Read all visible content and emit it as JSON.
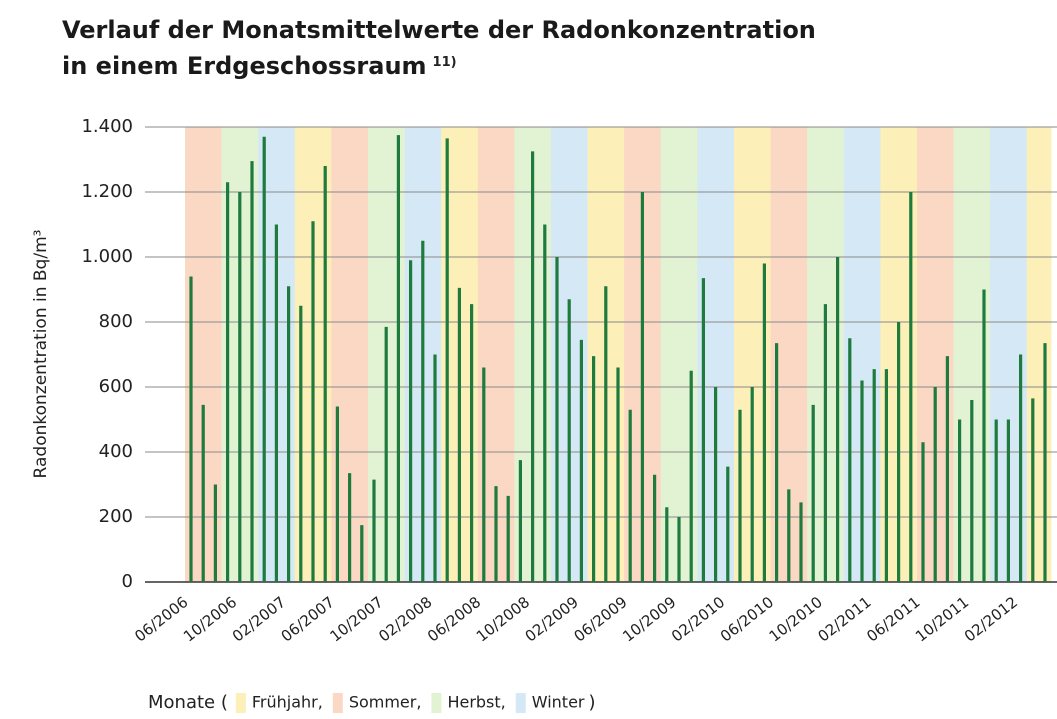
{
  "chart_data": {
    "type": "bar",
    "title": "Verlauf der Monatsmittelwerte der Radonkonzentration",
    "subtitle": "in einem Erdgeschossraum",
    "footnote": "11)",
    "y_label": "Radonkonzentration in Bq/m³",
    "categories": [
      "06/2006",
      null,
      null,
      null,
      "10/2006",
      null,
      null,
      null,
      "02/2007",
      null,
      null,
      null,
      "06/2007",
      null,
      null,
      null,
      "10/2007",
      null,
      null,
      null,
      "02/2008",
      null,
      null,
      null,
      "06/2008",
      null,
      null,
      null,
      "10/2008",
      null,
      null,
      null,
      "02/2009",
      null,
      null,
      null,
      "06/2009",
      null,
      null,
      null,
      "10/2009",
      null,
      null,
      null,
      "02/2010",
      null,
      null,
      null,
      "06/2010",
      null,
      null,
      null,
      "10/2010",
      null,
      null,
      null,
      "02/2011",
      null,
      null,
      null,
      "06/2011",
      null,
      null,
      null,
      "10/2011",
      null,
      null,
      null,
      "02/2012",
      null,
      null
    ],
    "values": [
      940,
      545,
      300,
      1230,
      1200,
      1295,
      1370,
      1100,
      910,
      850,
      1110,
      1280,
      540,
      335,
      175,
      315,
      785,
      1375,
      990,
      1050,
      700,
      1365,
      905,
      855,
      660,
      295,
      265,
      375,
      1325,
      1100,
      1000,
      870,
      745,
      695,
      910,
      660,
      530,
      1200,
      330,
      230,
      200,
      650,
      935,
      600,
      355,
      530,
      600,
      980,
      735,
      285,
      245,
      545,
      855,
      1000,
      750,
      620,
      655,
      655,
      800,
      1200,
      430,
      600,
      695,
      500,
      560,
      900,
      500,
      500,
      700,
      565,
      735
    ],
    "color": "#1f7a3e",
    "ylim": [
      0,
      1400
    ],
    "yticks": [
      0,
      200,
      400,
      600,
      800,
      {
        "value": 1000,
        "label": "1.000"
      },
      {
        "value": 1200,
        "label": "1.200"
      },
      {
        "value": 1400,
        "label": "1.400"
      }
    ],
    "grid": true,
    "legend": {
      "prefix": "Monate (",
      "suffix": ")",
      "items": [
        {
          "name": "Frühjahr,",
          "color": "#fcefb8"
        },
        {
          "name": "Sommer,",
          "color": "#fbd8c4"
        },
        {
          "name": "Herbst,",
          "color": "#e2f3d4"
        },
        {
          "name": "Winter",
          "color": "#d5e8f6"
        }
      ]
    }
  }
}
